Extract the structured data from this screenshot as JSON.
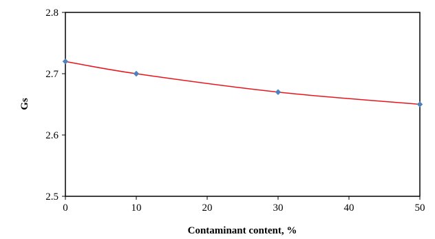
{
  "chart_data": {
    "type": "line",
    "title": "",
    "xlabel": "Contaminant content, %",
    "ylabel": "Gs",
    "xlim": [
      0,
      50
    ],
    "ylim": [
      2.5,
      2.8
    ],
    "x_ticks": [
      "0",
      "10",
      "20",
      "30",
      "40",
      "50"
    ],
    "y_ticks": [
      "2.5",
      "2.6",
      "2.7",
      "2.8"
    ],
    "grid": false,
    "legend": "none",
    "series": [
      {
        "x": [
          0,
          10,
          30,
          50
        ],
        "y": [
          2.72,
          2.7,
          2.67,
          2.65
        ],
        "line_color": "#e8141b",
        "marker_color": "#4f81bd",
        "marker": "diamond",
        "smooth": true
      }
    ]
  }
}
